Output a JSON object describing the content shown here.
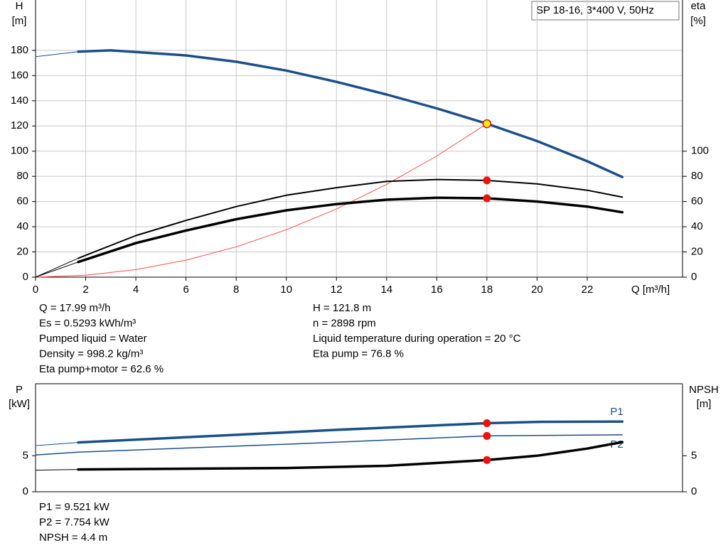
{
  "chart_data": [
    {
      "type": "line",
      "title": "SP 18-16, 3*400 V, 50Hz",
      "ylabel": "H",
      "yunit": "[m]",
      "y2label": "eta",
      "y2unit": "[%]",
      "xlabel": "Q [m³/h]",
      "xlim": [
        0,
        25.8
      ],
      "xticks": [
        0,
        2,
        4,
        6,
        8,
        10,
        12,
        14,
        16,
        18,
        20,
        22
      ],
      "ylim": [
        0,
        220
      ],
      "yticks": [
        0,
        20,
        40,
        60,
        80,
        100,
        120,
        140,
        160,
        180
      ],
      "y2lim": [
        0,
        220
      ],
      "y2ticks": [
        0,
        20,
        40,
        60,
        80,
        100
      ],
      "grid": true,
      "series": [
        {
          "color": "#ff4a4a",
          "width": 1,
          "x": [
            0,
            2,
            4,
            6,
            8,
            10,
            12,
            14,
            16,
            18
          ],
          "values": [
            0,
            1.5,
            6.0,
            13.5,
            24.1,
            37.6,
            54.1,
            73.7,
            96.2,
            121.8
          ]
        },
        {
          "color": "#1b4f8a",
          "width": 1,
          "x": [
            0,
            1.7
          ],
          "values": [
            175,
            179
          ]
        },
        {
          "color": "#1b4f8a",
          "width": 3.5,
          "x": [
            1.7,
            3,
            6,
            8,
            10,
            12,
            14,
            16,
            18,
            20,
            22,
            23.4
          ],
          "values": [
            179,
            180,
            176,
            171,
            164,
            155,
            145,
            134,
            121.8,
            108,
            92,
            79.5
          ]
        },
        {
          "color": "#000000",
          "width": 1,
          "axis": "y2",
          "x": [
            0,
            1.7
          ],
          "values": [
            0,
            15
          ]
        },
        {
          "color": "#000000",
          "width": 2,
          "axis": "y2",
          "x": [
            1.7,
            4,
            6,
            8,
            10,
            12,
            14,
            16,
            18,
            20,
            22,
            23.4
          ],
          "values": [
            15,
            33,
            45,
            56,
            65,
            71,
            76,
            77.5,
            76.8,
            74,
            69,
            63.5
          ]
        },
        {
          "color": "#000000",
          "width": 1,
          "axis": "y2",
          "x": [
            0,
            1.7
          ],
          "values": [
            0,
            12
          ]
        },
        {
          "color": "#000000",
          "width": 3.5,
          "axis": "y2",
          "x": [
            1.7,
            4,
            6,
            8,
            10,
            12,
            14,
            16,
            18,
            20,
            22,
            23.4
          ],
          "values": [
            12,
            27,
            37,
            46,
            53,
            58,
            61.5,
            63,
            62.6,
            60,
            56,
            51.5
          ]
        }
      ],
      "markers": [
        {
          "x": 18,
          "y": 121.8,
          "color": "#ffee00"
        },
        {
          "x": 18,
          "y": 76.8,
          "color": "#ee1111",
          "axis": "y2"
        },
        {
          "x": 18,
          "y": 62.6,
          "color": "#ee1111",
          "axis": "y2"
        }
      ]
    },
    {
      "type": "line",
      "ylabel": "P",
      "yunit": "[kW]",
      "y2label": "NPSH",
      "y2unit": "[m]",
      "xlim": [
        0,
        25.8
      ],
      "ylim": [
        0,
        15
      ],
      "yticks": [
        0,
        5
      ],
      "y2lim": [
        0,
        15
      ],
      "y2ticks": [
        0,
        5
      ],
      "series": [
        {
          "color": "#1b4f8a",
          "width": 1,
          "x": [
            0,
            1.7
          ],
          "values": [
            6.4,
            6.85
          ]
        },
        {
          "name": "P1",
          "color": "#1b4f8a",
          "width": 3.5,
          "x": [
            1.7,
            8,
            12,
            18,
            20,
            23.4
          ],
          "values": [
            6.85,
            7.9,
            8.6,
            9.521,
            9.7,
            9.75
          ]
        },
        {
          "name": "P2",
          "color": "#1b4f8a",
          "width": 1.5,
          "x": [
            0,
            1.7,
            10,
            18,
            23.4
          ],
          "values": [
            5.1,
            5.5,
            6.6,
            7.754,
            7.9
          ]
        },
        {
          "color": "#000000",
          "width": 1,
          "axis": "y2",
          "x": [
            0,
            1.7
          ],
          "values": [
            3.0,
            3.1
          ]
        },
        {
          "color": "#000000",
          "width": 3.5,
          "axis": "y2",
          "x": [
            1.7,
            10,
            14,
            18,
            20,
            22,
            23.4
          ],
          "values": [
            3.1,
            3.3,
            3.6,
            4.4,
            5.0,
            6.0,
            6.9
          ]
        }
      ],
      "markers": [
        {
          "x": 18,
          "y": 9.521,
          "color": "#ee1111"
        },
        {
          "x": 18,
          "y": 7.754,
          "color": "#ee1111"
        },
        {
          "x": 18,
          "y": 4.4,
          "color": "#ee1111",
          "axis": "y2"
        }
      ]
    }
  ],
  "info": {
    "left": [
      "Q = 17.99 m³/h",
      "Es = 0.5293 kWh/m³",
      "Pumped liquid = Water",
      "Density = 998.2 kg/m³",
      "Eta pump+motor = 62.6 %"
    ],
    "right": [
      "H = 121.8 m",
      "n = 2898 rpm",
      "Liquid temperature during operation = 20 °C",
      "Eta pump = 76.8 %"
    ],
    "bottom": [
      "P1 = 9.521 kW",
      "P2 = 7.754 kW",
      "NPSH = 4.4 m"
    ]
  }
}
